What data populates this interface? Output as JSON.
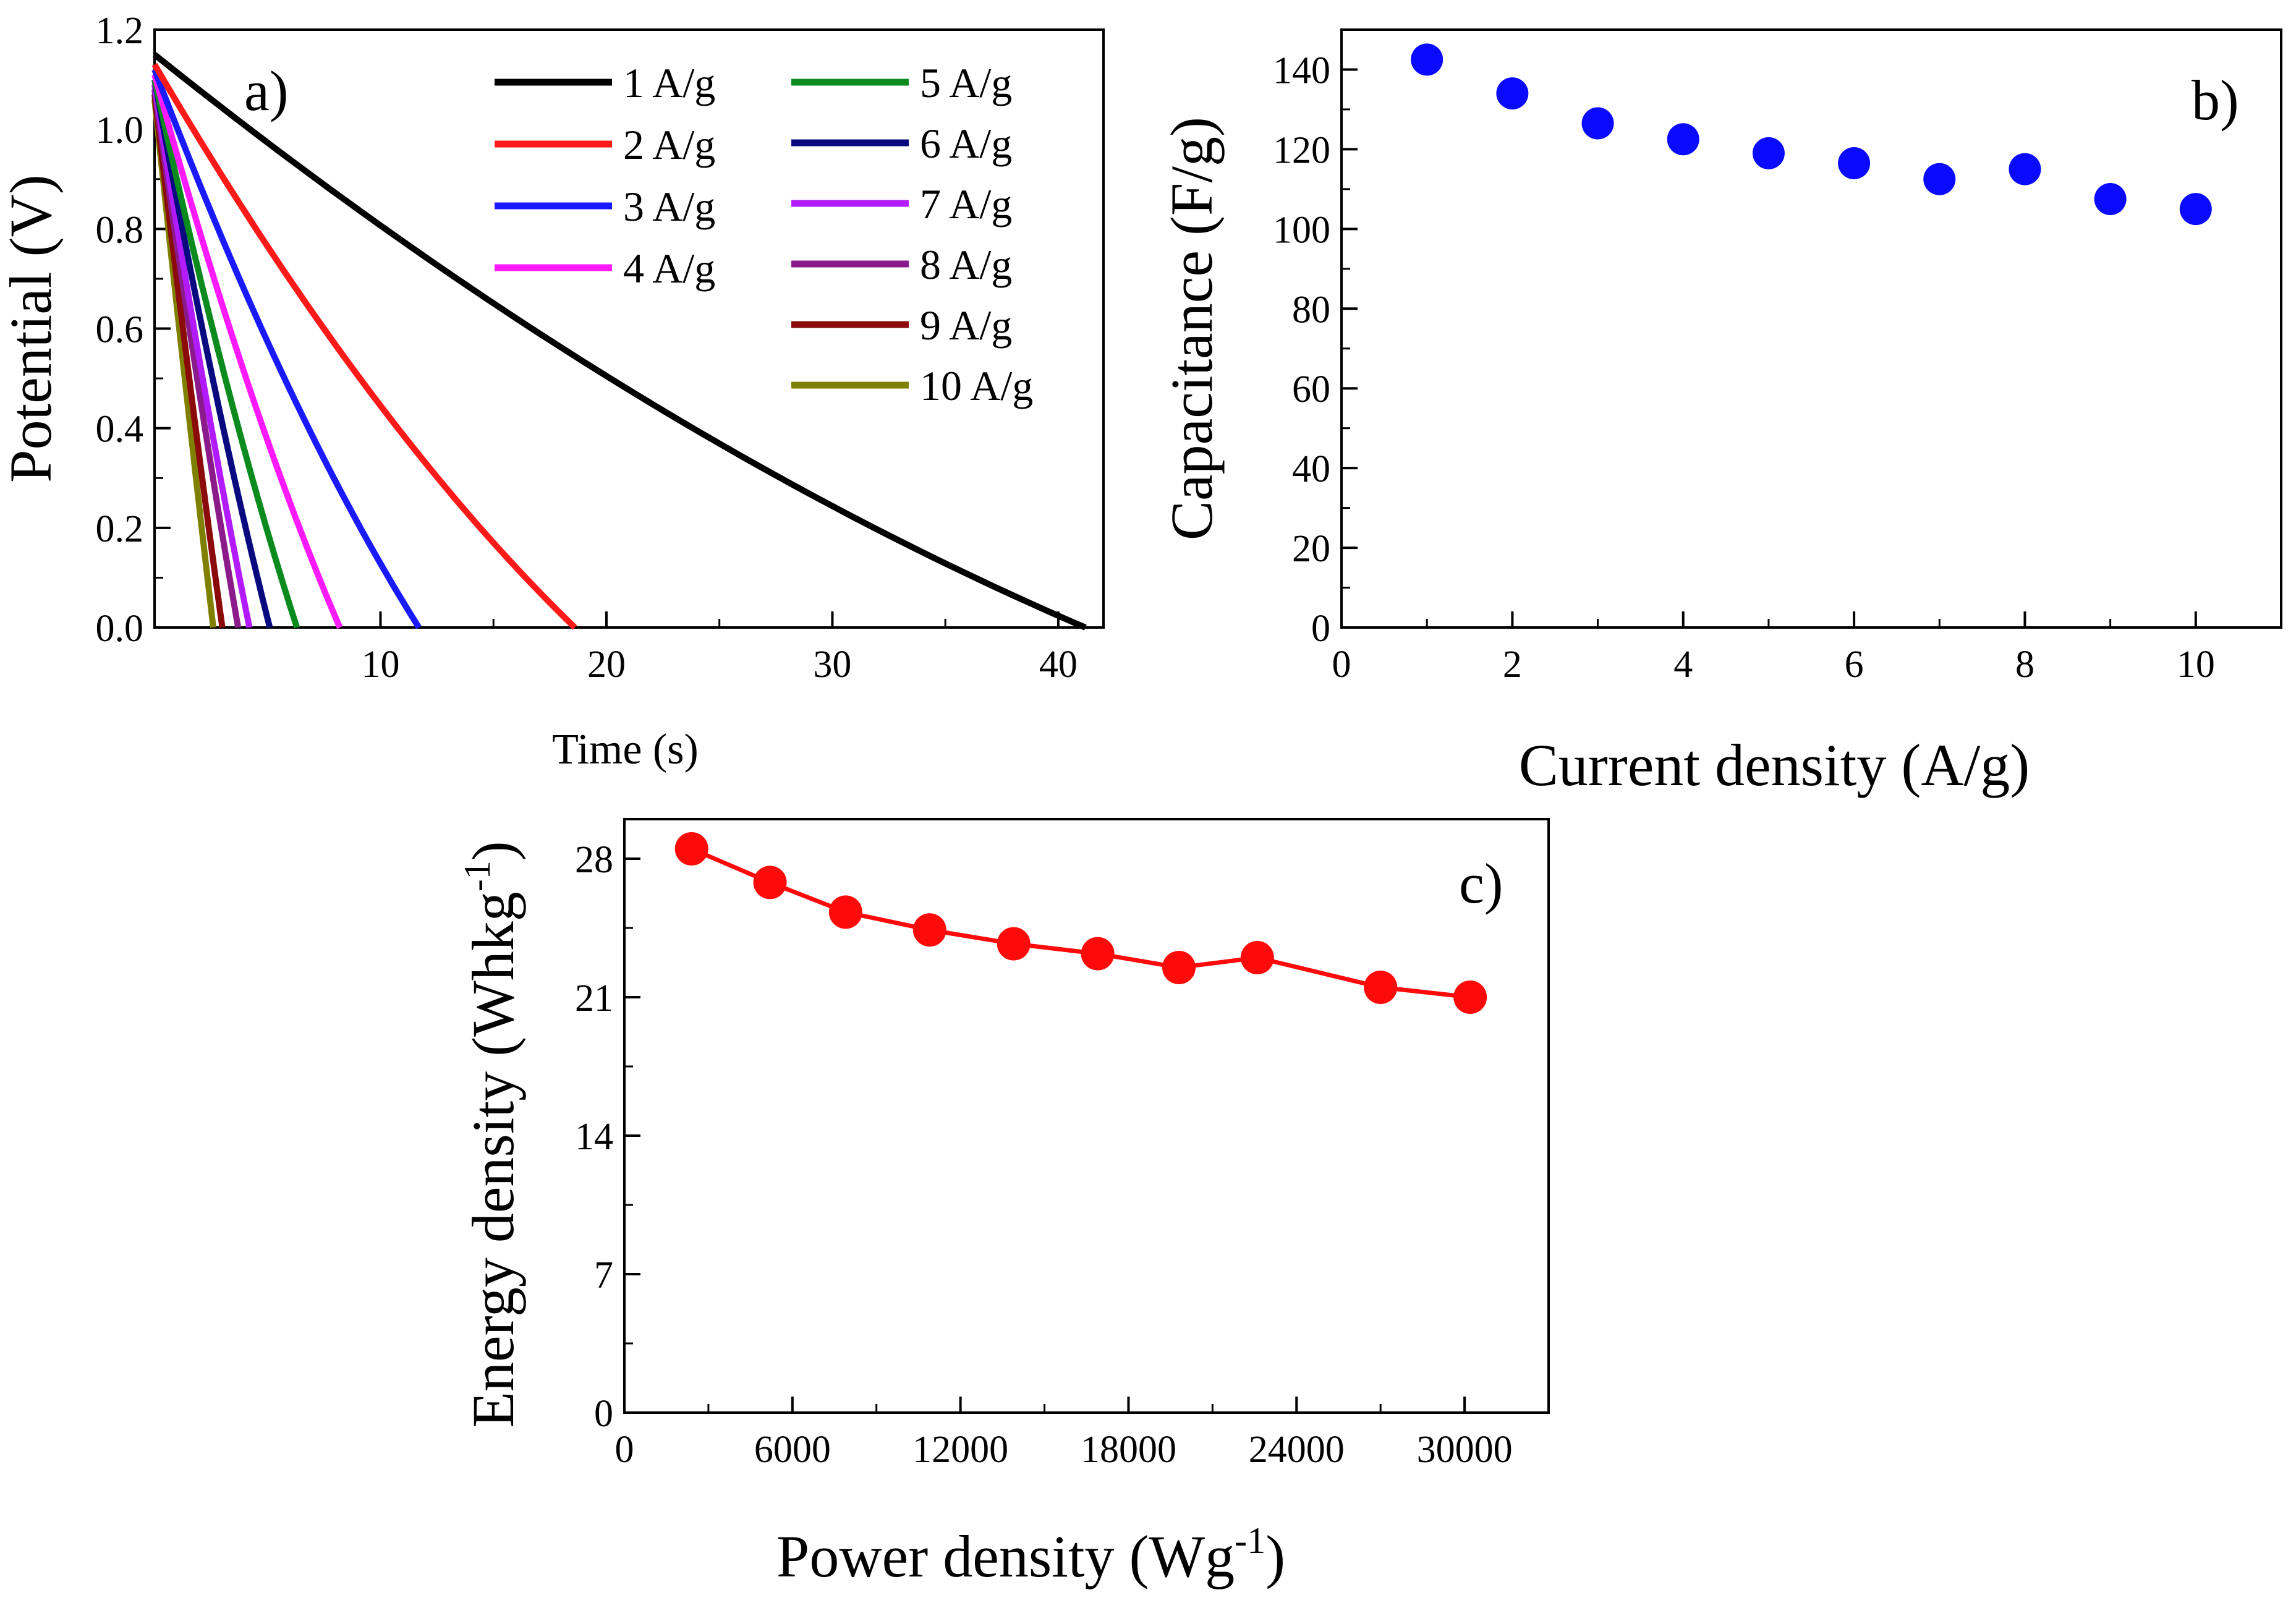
{
  "chart_data": [
    {
      "id": "a",
      "type": "line",
      "panel_label": "a)",
      "xlabel": "Time (s)",
      "ylabel": "Potential (V)",
      "xlim": [
        0,
        42
      ],
      "ylim": [
        0,
        1.2
      ],
      "xticks": [
        10,
        20,
        30,
        40
      ],
      "yticks": [
        0.0,
        0.2,
        0.4,
        0.6,
        0.8,
        1.0,
        1.2
      ],
      "ytick_labels": [
        "0.0",
        "0.2",
        "0.4",
        "0.6",
        "0.8",
        "1.0",
        "1.2"
      ],
      "legend_position": "top-right",
      "series": [
        {
          "name": "1 A/g",
          "color": "#000000",
          "v0": 1.15,
          "t_end": 41.2,
          "curve": 0.55
        },
        {
          "name": "2 A/g",
          "color": "#ff1a1a",
          "v0": 1.13,
          "t_end": 18.6,
          "curve": 0.5
        },
        {
          "name": "3 A/g",
          "color": "#1a1aff",
          "v0": 1.12,
          "t_end": 11.7,
          "curve": 0.45
        },
        {
          "name": "4 A/g",
          "color": "#ff1aff",
          "v0": 1.11,
          "t_end": 8.2,
          "curve": 0.4
        },
        {
          "name": "5 A/g",
          "color": "#0b8a1e",
          "v0": 1.1,
          "t_end": 6.3,
          "curve": 0.35
        },
        {
          "name": "6 A/g",
          "color": "#0a0a80",
          "v0": 1.1,
          "t_end": 5.1,
          "curve": 0.3
        },
        {
          "name": "7 A/g",
          "color": "#b21aff",
          "v0": 1.09,
          "t_end": 4.2,
          "curve": 0.25
        },
        {
          "name": "8 A/g",
          "color": "#8b1a8b",
          "v0": 1.08,
          "t_end": 3.7,
          "curve": 0.2
        },
        {
          "name": "9 A/g",
          "color": "#8b0a0a",
          "v0": 1.07,
          "t_end": 3.0,
          "curve": 0.15
        },
        {
          "name": "10 A/g",
          "color": "#808000",
          "v0": 1.06,
          "t_end": 2.6,
          "curve": 0.1
        }
      ]
    },
    {
      "id": "b",
      "type": "scatter",
      "panel_label": "b)",
      "xlabel": "Current density (A/g)",
      "ylabel": "Capacitance (F/g)",
      "xlim": [
        0,
        11
      ],
      "ylim": [
        0,
        150
      ],
      "xticks": [
        0,
        2,
        4,
        6,
        8,
        10
      ],
      "yticks": [
        0,
        20,
        40,
        60,
        80,
        100,
        120,
        140
      ],
      "color": "#0a0aff",
      "x": [
        1,
        2,
        3,
        4,
        5,
        6,
        7,
        8,
        9,
        10
      ],
      "y": [
        142.5,
        134,
        126.5,
        122.5,
        119,
        116.5,
        112.5,
        115,
        107.5,
        105
      ]
    },
    {
      "id": "c",
      "type": "line",
      "markers": true,
      "panel_label": "c)",
      "xlabel": "Power density (Wg",
      "xlabel_sup": "-1",
      "xlabel_end": ")",
      "ylabel": "Energy density (Whkg",
      "ylabel_sup": "-1",
      "ylabel_end": ")",
      "xlim": [
        0,
        33000
      ],
      "ylim": [
        0,
        30
      ],
      "xticks": [
        0,
        6000,
        12000,
        18000,
        24000,
        30000
      ],
      "yticks": [
        0,
        7,
        14,
        21,
        28
      ],
      "color": "#ff0a0a",
      "x": [
        2400,
        5200,
        7900,
        10900,
        13900,
        16900,
        19800,
        22600,
        27000,
        30200
      ],
      "y": [
        28.5,
        26.8,
        25.3,
        24.4,
        23.7,
        23.2,
        22.5,
        23.0,
        21.5,
        21.0
      ]
    }
  ]
}
